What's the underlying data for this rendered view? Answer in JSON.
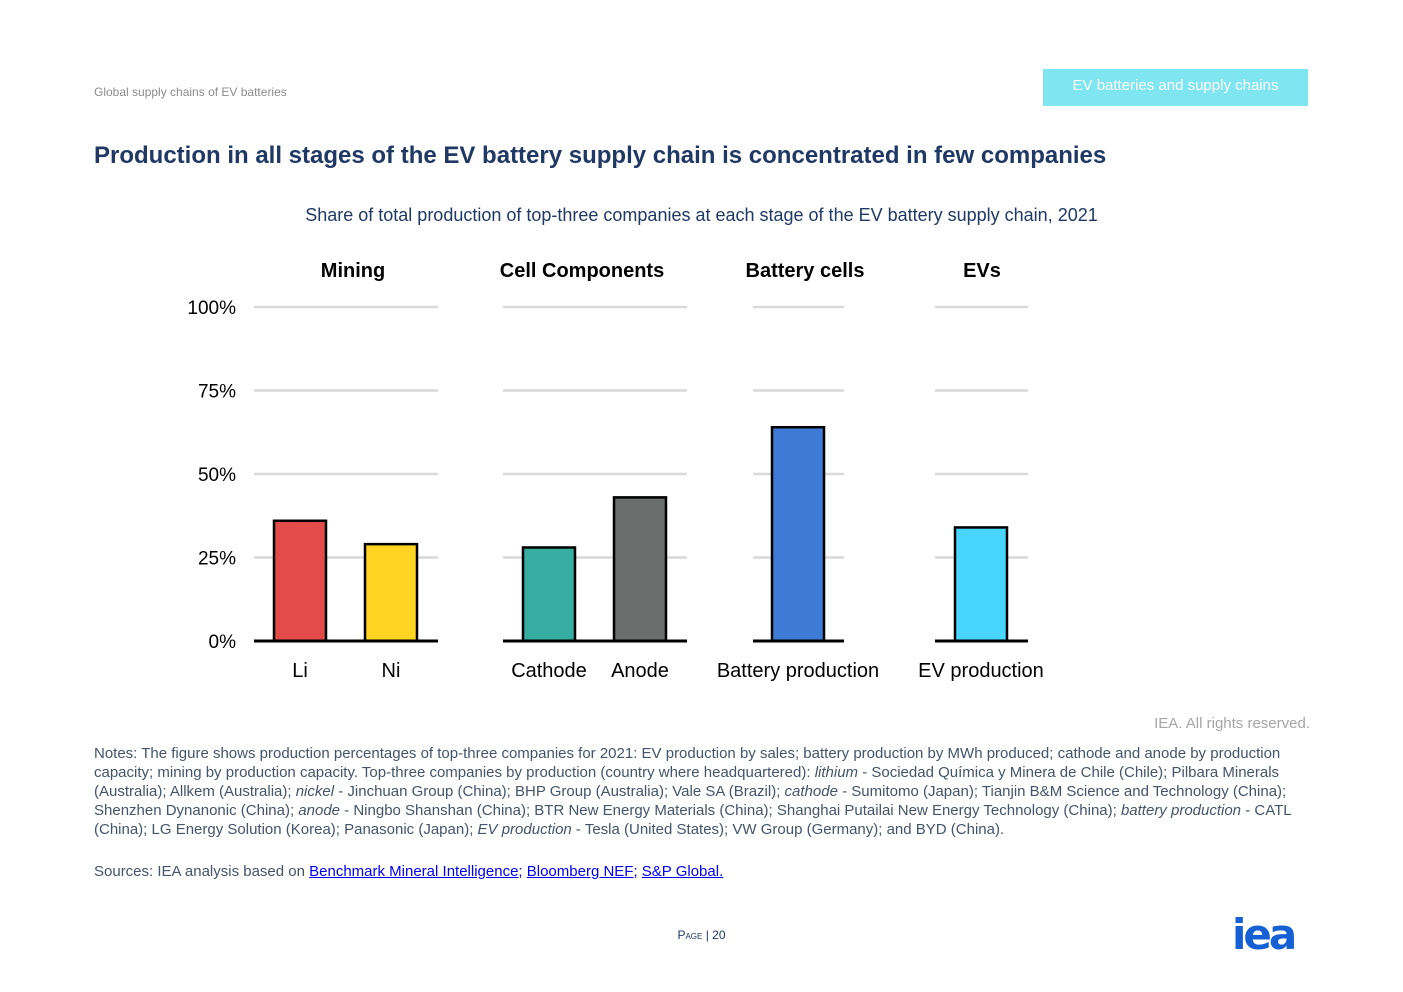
{
  "header": {
    "section_title": "Global supply chains of EV batteries",
    "tag": "EV batteries and supply chains"
  },
  "title": "Production in all stages of the EV battery supply chain is concentrated in few companies",
  "subtitle": "Share of total production of top-three companies at each stage of the EV battery supply chain, 2021",
  "chart_data": {
    "type": "bar",
    "ylim": [
      0,
      100
    ],
    "y_ticks": [
      "0%",
      "25%",
      "50%",
      "75%",
      "100%"
    ],
    "y_tick_values": [
      0,
      25,
      50,
      75,
      100
    ],
    "grid": true,
    "panels": [
      {
        "title": "Mining",
        "categories": [
          "Li",
          "Ni"
        ],
        "values": [
          36,
          29
        ],
        "colors": [
          "#e34a4a",
          "#ffd422"
        ]
      },
      {
        "title": "Cell Components",
        "categories": [
          "Cathode",
          "Anode"
        ],
        "values": [
          28,
          43
        ],
        "colors": [
          "#36aea2",
          "#6b6e6c"
        ]
      },
      {
        "title": "Battery cells",
        "categories": [
          "Battery production"
        ],
        "values": [
          64
        ],
        "colors": [
          "#3e7bd6"
        ]
      },
      {
        "title": "EVs",
        "categories": [
          "EV production"
        ],
        "values": [
          34
        ],
        "colors": [
          "#48d6ff"
        ]
      }
    ]
  },
  "copyright": "IEA. All rights reserved.",
  "notes": {
    "p1": "Notes: The figure shows production percentages of top-three companies for 2021: EV production by sales; battery production by MWh produced; cathode and anode by production capacity; mining by production capacity. Top-three companies by production (country where headquartered): ",
    "lithium": "lithium",
    "p2": " - Sociedad Química y Minera de Chile (Chile); Pilbara Minerals (Australia); Allkem (Australia); ",
    "nickel": "nickel",
    "p3": " - Jinchuan Group (China); BHP Group (Australia); Vale SA (Brazil); ",
    "cathode": "cathode",
    "p4": " - Sumitomo (Japan); Tianjin B&M Science and Technology (China); Shenzhen Dynanonic (China); ",
    "anode": "anode",
    "p5": " - Ningbo Shanshan (China); BTR New Energy Materials (China); Shanghai Putailai New Energy Technology (China); ",
    "battery_production": "battery production",
    "p6": " - CATL (China); LG Energy Solution (Korea); Panasonic (Japan); ",
    "ev_production": "EV production",
    "p7": " - Tesla (United States); VW Group (Germany); and BYD (China)."
  },
  "sources": {
    "prefix": "Sources: IEA analysis based on ",
    "links": [
      "Benchmark Mineral Intelligence;",
      "Bloomberg NEF;",
      "S&P Global."
    ]
  },
  "footer": {
    "page_label": "Page",
    "page_number": "20"
  },
  "logo": {
    "text": "iea",
    "color": "#1560d4"
  },
  "colors": {
    "title": "#1f3864",
    "grid": "#d9d9d9",
    "axis": "#000000"
  }
}
